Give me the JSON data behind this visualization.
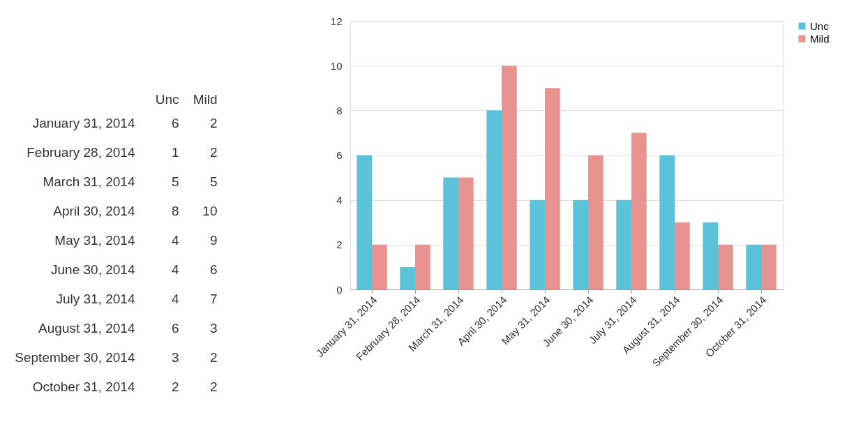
{
  "chart_data": [
    {
      "type": "heatmap",
      "categories": [
        "Unc",
        "Mild"
      ],
      "y_categories": [
        "January 31, 2014",
        "February 28, 2014",
        "March 31, 2014",
        "April 30, 2014",
        "May 31, 2014",
        "June 30, 2014",
        "July 31, 2014",
        "August 31, 2014",
        "September 30, 2014",
        "October 31, 2014"
      ],
      "cells": [
        [
          6,
          2
        ],
        [
          1,
          2
        ],
        [
          5,
          5
        ],
        [
          8,
          10
        ],
        [
          4,
          9
        ],
        [
          4,
          6
        ],
        [
          4,
          7
        ],
        [
          6,
          3
        ],
        [
          3,
          2
        ],
        [
          2,
          2
        ]
      ],
      "data_labels": true
    },
    {
      "type": "bar",
      "categories": [
        "January 31, 2014",
        "February 28, 2014",
        "March 31, 2014",
        "April 30, 2014",
        "May 31, 2014",
        "June 30, 2014",
        "July 31, 2014",
        "August 31, 2014",
        "September 30, 2014",
        "October 31, 2014"
      ],
      "series": [
        {
          "name": "Unc",
          "color": "#5bc3d9",
          "values": [
            6,
            1,
            5,
            8,
            4,
            4,
            4,
            6,
            3,
            2
          ]
        },
        {
          "name": "Mild",
          "color": "#e8938f",
          "values": [
            2,
            2,
            5,
            10,
            9,
            6,
            7,
            3,
            2,
            2
          ]
        }
      ],
      "ylim": [
        0,
        12
      ],
      "yticks": [
        0,
        2,
        4,
        6,
        8,
        10,
        12
      ],
      "grid": "y",
      "legend": "right"
    }
  ]
}
